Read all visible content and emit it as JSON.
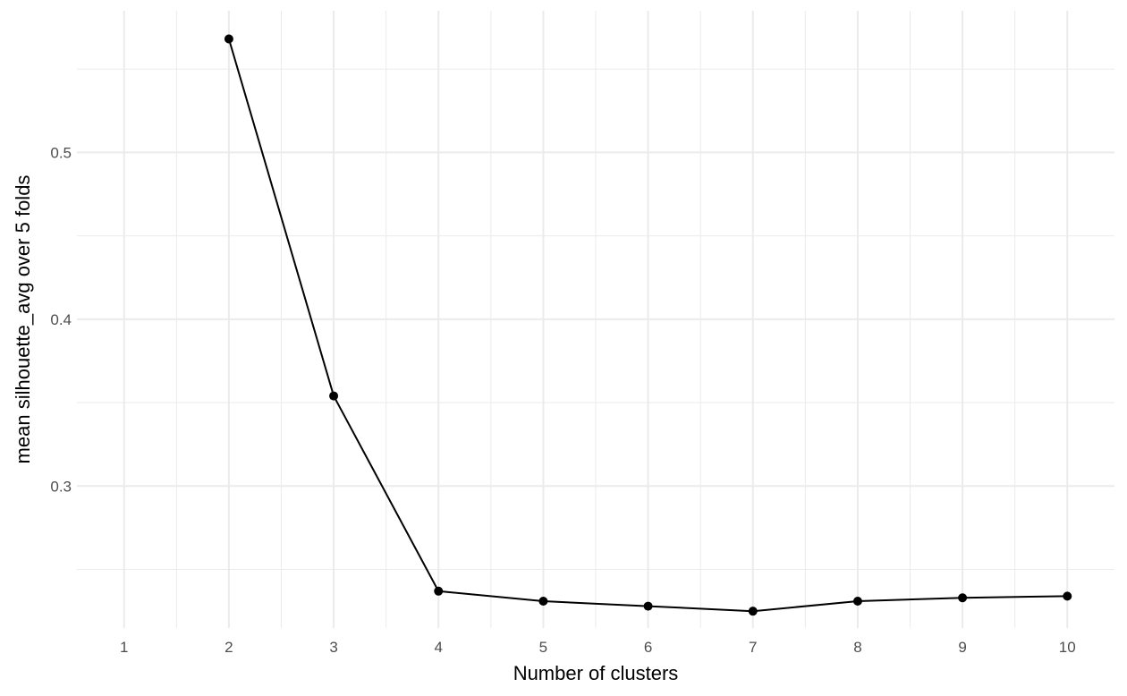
{
  "chart_data": {
    "type": "line",
    "title": "",
    "xlabel": "Number of clusters",
    "ylabel": "mean silhouette_avg over 5 folds",
    "x_ticks": [
      1,
      2,
      3,
      4,
      5,
      6,
      7,
      8,
      9,
      10
    ],
    "y_ticks": [
      0.3,
      0.4,
      0.5
    ],
    "y_tick_labels": [
      "0.3",
      "0.4",
      "0.5"
    ],
    "xlim": [
      0.55,
      10.45
    ],
    "ylim": [
      0.2149,
      0.5849
    ],
    "grid": true,
    "legend": "none",
    "series": [
      {
        "x": [
          2,
          3,
          4,
          5,
          6,
          7,
          8,
          9,
          10
        ],
        "y": [
          0.568,
          0.354,
          0.237,
          0.231,
          0.228,
          0.225,
          0.231,
          0.233,
          0.234
        ],
        "color": "#000000"
      }
    ]
  }
}
